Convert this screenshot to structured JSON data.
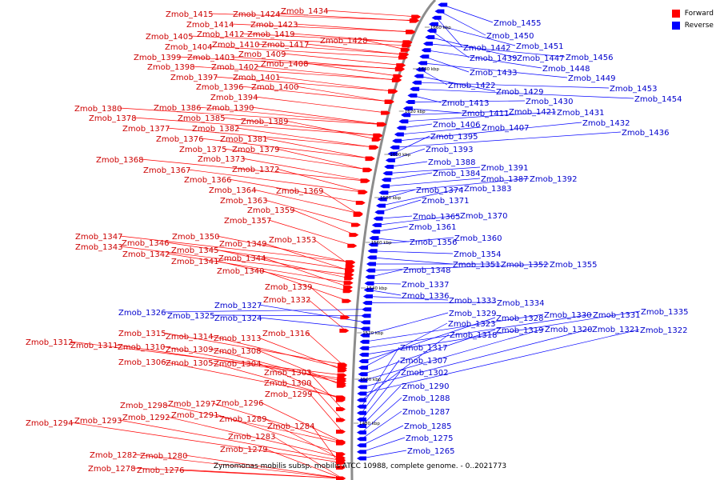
{
  "legend": {
    "forward_label": "Forward",
    "reverse_label": "Reverse",
    "forward_color": "#ff0000",
    "reverse_color": "#0000ff"
  },
  "footer": "Zymomonas mobilis subsp. mobilis ATCC 10988, complete genome. - 0..2021773",
  "ticks": [
    "1660 kbp",
    "1640 kbp",
    "1620 kbp",
    "1600 kbp",
    "1580 kbp",
    "1560 kbp",
    "1540 kbp",
    "1520 kbp",
    "1500 kbp",
    "1480 kbp"
  ],
  "forward_genes": [
    "Zmob_1434",
    "Zmob_1415",
    "Zmob_1424",
    "Zmob_1414",
    "Zmob_1423",
    "Zmob_1412",
    "Zmob_1419",
    "Zmob_1405",
    "Zmob_1428",
    "Zmob_1410",
    "Zmob_1417",
    "Zmob_1404",
    "Zmob_1409",
    "Zmob_1399",
    "Zmob_1403",
    "Zmob_1408",
    "Zmob_1398",
    "Zmob_1402",
    "Zmob_1397",
    "Zmob_1401",
    "Zmob_1396",
    "Zmob_1400",
    "Zmob_1394",
    "Zmob_1380",
    "Zmob_1386",
    "Zmob_1390",
    "Zmob_1378",
    "Zmob_1385",
    "Zmob_1389",
    "Zmob_1377",
    "Zmob_1382",
    "Zmob_1376",
    "Zmob_1381",
    "Zmob_1375",
    "Zmob_1379",
    "Zmob_1368",
    "Zmob_1373",
    "Zmob_1367",
    "Zmob_1372",
    "Zmob_1366",
    "Zmob_1364",
    "Zmob_1369",
    "Zmob_1363",
    "Zmob_1359",
    "Zmob_1357",
    "Zmob_1347",
    "Zmob_1350",
    "Zmob_1353",
    "Zmob_1346",
    "Zmob_1349",
    "Zmob_1343",
    "Zmob_1345",
    "Zmob_1342",
    "Zmob_1344",
    "Zmob_1341",
    "Zmob_1340",
    "Zmob_1339",
    "Zmob_1332",
    "Zmob_1315",
    "Zmob_1314",
    "Zmob_1313",
    "Zmob_1316",
    "Zmob_1312",
    "Zmob_1311",
    "Zmob_1310",
    "Zmob_1309",
    "Zmob_1308",
    "Zmob_1306",
    "Zmob_1305",
    "Zmob_1304",
    "Zmob_1303",
    "Zmob_1300",
    "Zmob_1299",
    "Zmob_1298",
    "Zmob_1297",
    "Zmob_1296",
    "Zmob_1291",
    "Zmob_1294",
    "Zmob_1293",
    "Zmob_1292",
    "Zmob_1289",
    "Zmob_1284",
    "Zmob_1283",
    "Zmob_1279",
    "Zmob_1282",
    "Zmob_1280",
    "Zmob_1278",
    "Zmob_1276"
  ],
  "reverse_genes": [
    "Zmob_1455",
    "Zmob_1450",
    "Zmob_1442",
    "Zmob_1451",
    "Zmob_1439",
    "Zmob_1447",
    "Zmob_1456",
    "Zmob_1448",
    "Zmob_1433",
    "Zmob_1449",
    "Zmob_1422",
    "Zmob_1429",
    "Zmob_1453",
    "Zmob_1454",
    "Zmob_1413",
    "Zmob_1430",
    "Zmob_1411",
    "Zmob_1421",
    "Zmob_1431",
    "Zmob_1406",
    "Zmob_1407",
    "Zmob_1432",
    "Zmob_1436",
    "Zmob_1395",
    "Zmob_1393",
    "Zmob_1388",
    "Zmob_1391",
    "Zmob_1384",
    "Zmob_1387",
    "Zmob_1392",
    "Zmob_1374",
    "Zmob_1383",
    "Zmob_1371",
    "Zmob_1365",
    "Zmob_1370",
    "Zmob_1361",
    "Zmob_1356",
    "Zmob_1360",
    "Zmob_1354",
    "Zmob_1351",
    "Zmob_1352",
    "Zmob_1355",
    "Zmob_1348",
    "Zmob_1337",
    "Zmob_1336",
    "Zmob_1333",
    "Zmob_1334",
    "Zmob_1326",
    "Zmob_1325",
    "Zmob_1327",
    "Zmob_1324",
    "Zmob_1329",
    "Zmob_1330",
    "Zmob_1331",
    "Zmob_1335",
    "Zmob_1328",
    "Zmob_1323",
    "Zmob_1319",
    "Zmob_1320",
    "Zmob_1321",
    "Zmob_1322",
    "Zmob_1318",
    "Zmob_1317",
    "Zmob_1307",
    "Zmob_1302",
    "Zmob_1290",
    "Zmob_1288",
    "Zmob_1287",
    "Zmob_1285",
    "Zmob_1275",
    "Zmob_1265"
  ]
}
